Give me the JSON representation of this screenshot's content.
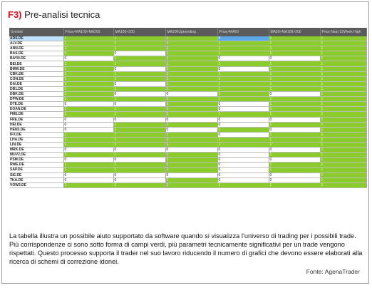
{
  "header": {
    "num": "F3)",
    "title": "Pre-analisi tecnica"
  },
  "table": {
    "columns": [
      "Symbol",
      "Price>MA100>MA200",
      "MA100>200",
      "MA200Uptrending",
      "Price>MA50",
      "MA50>MA100>200",
      "Price Near 52Week High"
    ],
    "rows": [
      {
        "symbol": "ADS.DE",
        "values": [
          "1",
          "1",
          "1",
          "0",
          "1",
          "1"
        ]
      },
      {
        "symbol": "ALV.DE",
        "values": [
          "1",
          "1",
          "1",
          "1",
          "1",
          "1"
        ]
      },
      {
        "symbol": "ANN.DE",
        "values": [
          "1",
          "1",
          "1",
          "1",
          "1",
          "1"
        ]
      },
      {
        "symbol": "BAS.DE",
        "values": [
          "1",
          "0",
          "1",
          "1",
          "1",
          "1"
        ]
      },
      {
        "symbol": "BAYN.DE",
        "values": [
          "0",
          "1",
          "1",
          "0",
          "0",
          "1"
        ]
      },
      {
        "symbol": "BEI.DE",
        "values": [
          "1",
          "1",
          "1",
          "1",
          "1",
          "1"
        ]
      },
      {
        "symbol": "BMW.DE",
        "values": [
          "1",
          "0",
          "1",
          "0",
          "1",
          "1"
        ]
      },
      {
        "symbol": "CBK.DE",
        "values": [
          "1",
          "1",
          "1",
          "1",
          "1",
          "1"
        ]
      },
      {
        "symbol": "CON.DE",
        "values": [
          "1",
          "1",
          "1",
          "1",
          "1",
          "1"
        ]
      },
      {
        "symbol": "DAI.DE",
        "values": [
          "1",
          "0",
          "1",
          "1",
          "1",
          "1"
        ]
      },
      {
        "symbol": "DB1.DE",
        "values": [
          "1",
          "1",
          "1",
          "1",
          "1",
          "1"
        ]
      },
      {
        "symbol": "DBK.DE",
        "values": [
          "1",
          "0",
          "0",
          "1",
          "0",
          "1"
        ]
      },
      {
        "symbol": "DPW.DE",
        "values": [
          "1",
          "1",
          "1",
          "1",
          "1",
          "1"
        ]
      },
      {
        "symbol": "DTE.DE",
        "values": [
          "0",
          "0",
          "1",
          "0",
          "1",
          "1"
        ]
      },
      {
        "symbol": "EOAN.DE",
        "values": [
          "1",
          "1",
          "1",
          "0",
          "1",
          "1"
        ]
      },
      {
        "symbol": "FME.DE",
        "values": [
          "1",
          "1",
          "1",
          "1",
          "1",
          "1"
        ]
      },
      {
        "symbol": "FRE.DE",
        "values": [
          "0",
          "0",
          "0",
          "0",
          "0",
          "1"
        ]
      },
      {
        "symbol": "HEI.DE",
        "values": [
          "0",
          "1",
          "1",
          "0",
          "1",
          "1"
        ]
      },
      {
        "symbol": "HEN3.DE",
        "values": [
          "0",
          "1",
          "0",
          "1",
          "0",
          "1"
        ]
      },
      {
        "symbol": "IFX.DE",
        "values": [
          "1",
          "1",
          "1",
          "0",
          "1",
          "1"
        ]
      },
      {
        "symbol": "LHA.DE",
        "values": [
          "1",
          "1",
          "1",
          "1",
          "1",
          "1"
        ]
      },
      {
        "symbol": "LIN.DE",
        "values": [
          "1",
          "1",
          "1",
          "1",
          "1",
          "1"
        ]
      },
      {
        "symbol": "MRK.DE",
        "values": [
          "0",
          "0",
          "0",
          "0",
          "0",
          "1"
        ]
      },
      {
        "symbol": "MUV2.DE",
        "values": [
          "1",
          "1",
          "1",
          "0",
          "1",
          "1"
        ]
      },
      {
        "symbol": "PSM.DE",
        "values": [
          "0",
          "0",
          "1",
          "0",
          "0",
          "1"
        ]
      },
      {
        "symbol": "RWE.DE",
        "values": [
          "1",
          "1",
          "1",
          "0",
          "1",
          "1"
        ]
      },
      {
        "symbol": "SAP.DE",
        "values": [
          "1",
          "1",
          "1",
          "0",
          "1",
          "1"
        ]
      },
      {
        "symbol": "SIE.DE",
        "values": [
          "0",
          "0",
          "0",
          "0",
          "0",
          "1"
        ]
      },
      {
        "symbol": "TKA.DE",
        "values": [
          "0",
          "0",
          "1",
          "0",
          "0",
          "1"
        ]
      },
      {
        "symbol": "VOW3.DE",
        "values": [
          "1",
          "1",
          "1",
          "1",
          "1",
          "1"
        ]
      }
    ]
  },
  "caption": "La tabella illustra un possibile aiuto supportato da software quando si visualizza l’universo di trading per i possibili trade. Più corrispondenze ci sono sotto forma di campi verdi, più parametri tecnicamente significativi per un trade vengono rispettati. Questo processo supporta il trader nel suo lavoro riducendo il numero di grafici che devono essere elaborati alla ricerca di schemi di correzione idonei.",
  "source": "Fonte: AgenaTrader",
  "colors": {
    "match": "#8bcb2b",
    "nomatch": "#ffffff",
    "header": "#5b5b5b",
    "title_accent": "#d20f1c"
  }
}
